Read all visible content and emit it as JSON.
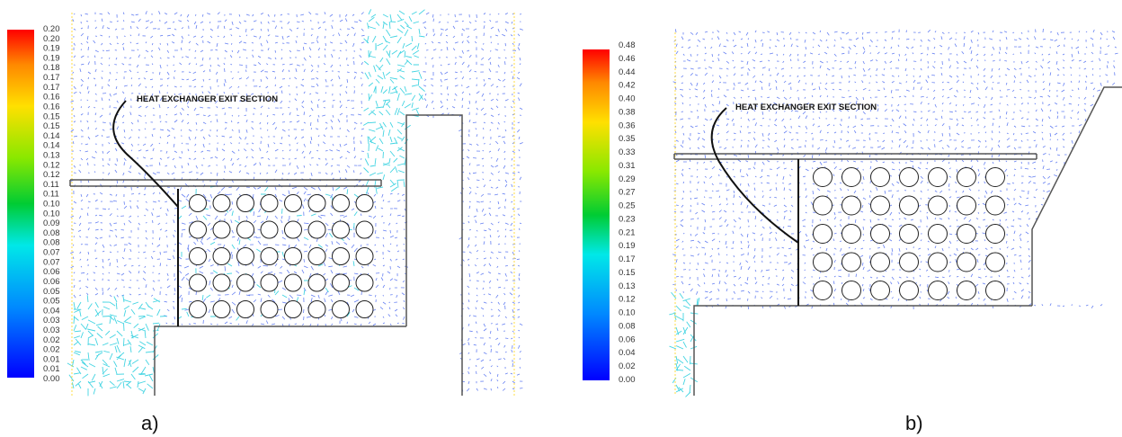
{
  "panels": [
    {
      "id": "a",
      "caption": "a)",
      "annotation": "HEAT EXCHANGER EXIT SECTION",
      "colorbar_ticks": [
        "0.20",
        "0.20",
        "0.19",
        "0.19",
        "0.18",
        "0.17",
        "0.17",
        "0.16",
        "0.16",
        "0.15",
        "0.15",
        "0.14",
        "0.14",
        "0.13",
        "0.12",
        "0.12",
        "0.11",
        "0.11",
        "0.10",
        "0.10",
        "0.09",
        "0.08",
        "0.08",
        "0.07",
        "0.07",
        "0.06",
        "0.06",
        "0.05",
        "0.05",
        "0.04",
        "0.03",
        "0.03",
        "0.02",
        "0.02",
        "0.01",
        "0.01",
        "0.00"
      ],
      "tube_grid": {
        "rows": 5,
        "cols": 8
      }
    },
    {
      "id": "b",
      "caption": "b)",
      "annotation": "HEAT EXCHANGER EXIT SECTION",
      "colorbar_ticks": [
        "0.48",
        "0.46",
        "0.44",
        "0.42",
        "0.40",
        "0.38",
        "0.36",
        "0.35",
        "0.33",
        "0.31",
        "0.29",
        "0.27",
        "0.25",
        "0.23",
        "0.21",
        "0.19",
        "0.17",
        "0.15",
        "0.13",
        "0.12",
        "0.10",
        "0.08",
        "0.06",
        "0.04",
        "0.02",
        "0.00"
      ],
      "tube_grid": {
        "rows": 5,
        "cols": 7
      }
    }
  ],
  "colors": {
    "vector_slow": "#3355ee",
    "vector_fast": "#22ccdd",
    "wall": "#555555",
    "leader": "#111111"
  }
}
